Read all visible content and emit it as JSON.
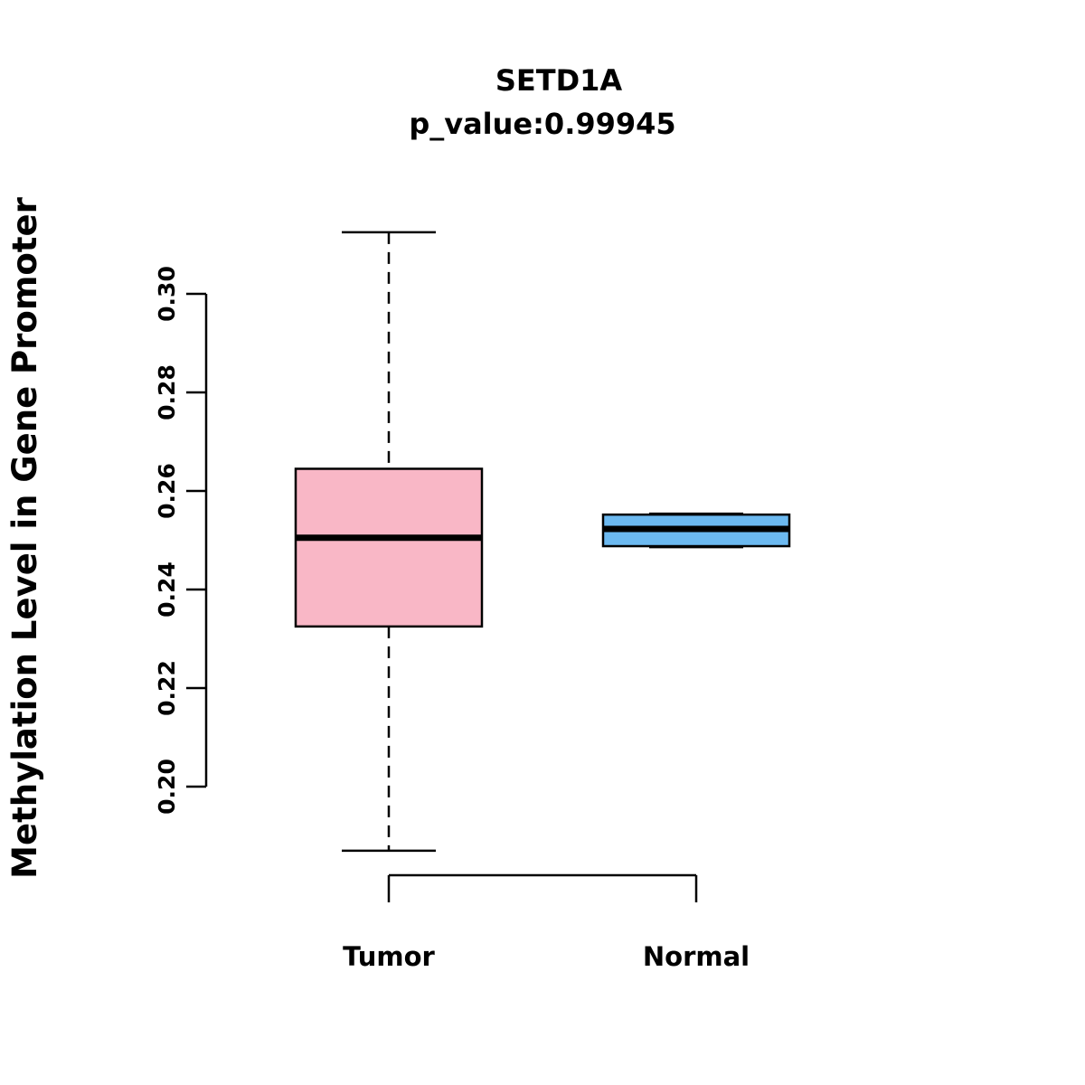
{
  "chart_data": {
    "type": "boxplot",
    "title": "SETD1A",
    "subtitle": "p_value:0.99945",
    "ylabel": "Methylation Level in Gene Promoter",
    "xlabel": "",
    "categories": [
      "Tumor",
      "Normal"
    ],
    "yticks": [
      0.2,
      0.22,
      0.24,
      0.26,
      0.28,
      0.3
    ],
    "ytick_labels": [
      "0.20",
      "0.22",
      "0.24",
      "0.26",
      "0.28",
      "0.30"
    ],
    "ylim": [
      0.185,
      0.315
    ],
    "grid": "off",
    "legend": "none",
    "series": [
      {
        "name": "Tumor",
        "whisker_low": 0.187,
        "q1": 0.2325,
        "median": 0.2505,
        "q3": 0.2645,
        "whisker_high": 0.3125,
        "color": "#F9B7C6"
      },
      {
        "name": "Normal",
        "whisker_low": 0.2486,
        "q1": 0.2488,
        "median": 0.2523,
        "q3": 0.2552,
        "whisker_high": 0.2554,
        "color": "#6CB9F0"
      }
    ],
    "colors": {
      "axis": "#000000",
      "box_stroke": "#000000",
      "median": "#000000",
      "background": "#ffffff"
    }
  }
}
